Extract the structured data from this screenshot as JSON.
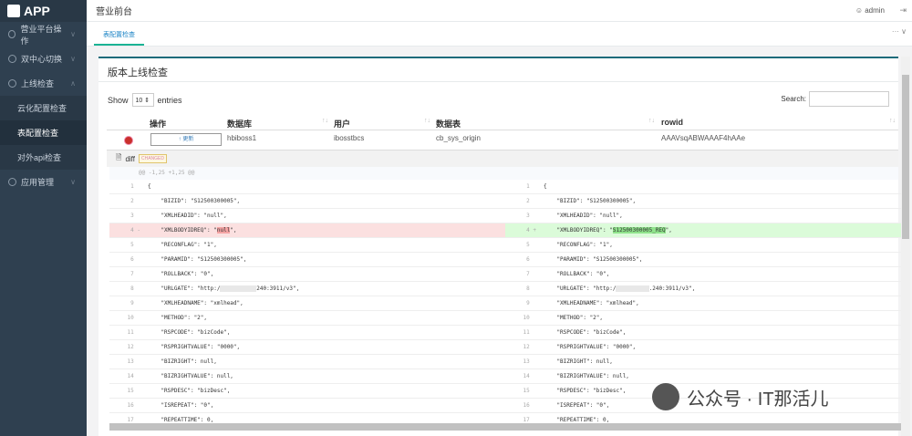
{
  "app": {
    "logo": "APP",
    "title": "营业前台",
    "user": "admin"
  },
  "sidebar": {
    "items": [
      {
        "label": "营业平台操作",
        "expanded": false
      },
      {
        "label": "双中心切换",
        "expanded": false
      },
      {
        "label": "上线检查",
        "expanded": true,
        "children": [
          {
            "label": "云化配置检查"
          },
          {
            "label": "表配置检查",
            "active": true
          },
          {
            "label": "对外api检查"
          }
        ]
      },
      {
        "label": "应用管理",
        "expanded": false
      }
    ]
  },
  "tabs": [
    {
      "label": "表配置检查",
      "active": true
    }
  ],
  "panel": {
    "title": "版本上线检查",
    "show_label": "Show",
    "entries_value": "10",
    "entries_label": "entries",
    "search_label": "Search:",
    "search_value": ""
  },
  "table": {
    "headers": [
      "操作",
      "数据库",
      "用户",
      "数据表",
      "rowid"
    ],
    "rows": [
      {
        "action": "↑ 更新",
        "db": "hbiboss1",
        "user": "ibosstbcs",
        "table": "cb_sys_origin",
        "rowid": "AAAVsqABWAAAF4hAAe"
      }
    ]
  },
  "diff": {
    "label": "diff",
    "badge": "CHANGED",
    "hunk": "@@ -1,25 +1,25 @@",
    "left": [
      {
        "n": "1",
        "code": "{"
      },
      {
        "n": "2",
        "code": "    \"BIZID\": \"S12500300005\","
      },
      {
        "n": "3",
        "code": "    \"XMLHEADID\": \"null\","
      },
      {
        "n": "4",
        "mark": "-",
        "type": "del",
        "pre": "    \"XMLBODYIDREQ\": \"",
        "hl": "null",
        "post": "\","
      },
      {
        "n": "5",
        "code": "    \"RECONFLAG\": \"1\","
      },
      {
        "n": "6",
        "code": "    \"PARAMID\": \"S12500300005\","
      },
      {
        "n": "7",
        "code": "    \"ROLLBACK\": \"0\","
      },
      {
        "n": "8",
        "pre": "    \"URLGATE\": \"http:/",
        "hl": "           ",
        "post": "240:3911/v3\","
      },
      {
        "n": "9",
        "code": "    \"XMLHEADNAME\": \"xmlhead\","
      },
      {
        "n": "10",
        "code": "    \"METHOD\": \"2\","
      },
      {
        "n": "11",
        "code": "    \"RSPCODE\": \"bizCode\","
      },
      {
        "n": "12",
        "code": "    \"RSPRIGHTVALUE\": \"0000\","
      },
      {
        "n": "13",
        "code": "    \"BIZRIGHT\": null,"
      },
      {
        "n": "14",
        "code": "    \"BIZRIGHTVALUE\": null,"
      },
      {
        "n": "15",
        "code": "    \"RSPDESC\": \"bizDesc\","
      },
      {
        "n": "16",
        "code": "    \"ISREPEAT\": \"0\","
      },
      {
        "n": "17",
        "code": "    \"REPEATTIME\": 0,"
      }
    ],
    "right": [
      {
        "n": "1",
        "code": "{"
      },
      {
        "n": "2",
        "code": "    \"BIZID\": \"S12500300005\","
      },
      {
        "n": "3",
        "code": "    \"XMLHEADID\": \"null\","
      },
      {
        "n": "4",
        "mark": "+",
        "type": "add",
        "pre": "    \"XMLBODYIDREQ\": \"",
        "hl": "S12500300005_REQ",
        "post": "\","
      },
      {
        "n": "5",
        "code": "    \"RECONFLAG\": \"1\","
      },
      {
        "n": "6",
        "code": "    \"PARAMID\": \"S12500300005\","
      },
      {
        "n": "7",
        "code": "    \"ROLLBACK\": \"0\","
      },
      {
        "n": "8",
        "pre": "    \"URLGATE\": \"http:/",
        "hl": "          ",
        "post": ".240:3911/v3\","
      },
      {
        "n": "9",
        "code": "    \"XMLHEADNAME\": \"xmlhead\","
      },
      {
        "n": "10",
        "code": "    \"METHOD\": \"2\","
      },
      {
        "n": "11",
        "code": "    \"RSPCODE\": \"bizCode\","
      },
      {
        "n": "12",
        "code": "    \"RSPRIGHTVALUE\": \"0000\","
      },
      {
        "n": "13",
        "code": "    \"BIZRIGHT\": null,"
      },
      {
        "n": "14",
        "code": "    \"BIZRIGHTVALUE\": null,"
      },
      {
        "n": "15",
        "code": "    \"RSPDESC\": \"bizDesc\","
      },
      {
        "n": "16",
        "code": "    \"ISREPEAT\": \"0\","
      },
      {
        "n": "17",
        "code": "    \"REPEATTIME\": 0,"
      }
    ]
  },
  "watermark": "公众号 · IT那活儿"
}
